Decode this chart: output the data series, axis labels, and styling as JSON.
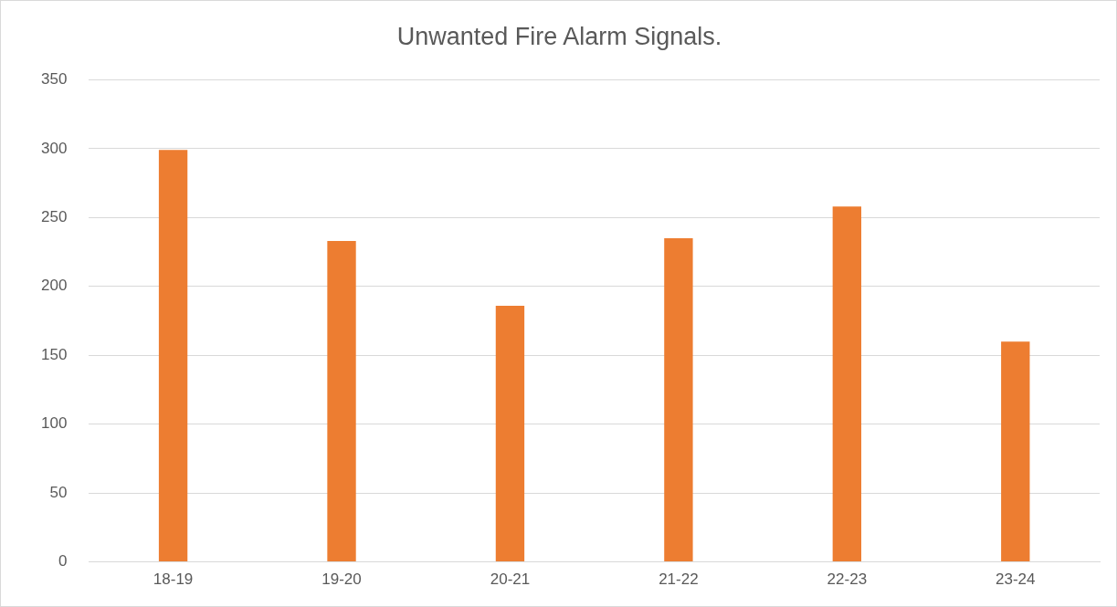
{
  "chart_data": {
    "type": "bar",
    "title": "Unwanted Fire Alarm Signals.",
    "categories": [
      "18-19",
      "19-20",
      "20-21",
      "21-22",
      "22-23",
      "23-24"
    ],
    "values": [
      299,
      233,
      186,
      235,
      258,
      160
    ],
    "color": "#ed7d31",
    "ylim": [
      0,
      350
    ],
    "yticks": [
      0,
      50,
      100,
      150,
      200,
      250,
      300,
      350
    ],
    "grid": "y",
    "legend": false
  }
}
